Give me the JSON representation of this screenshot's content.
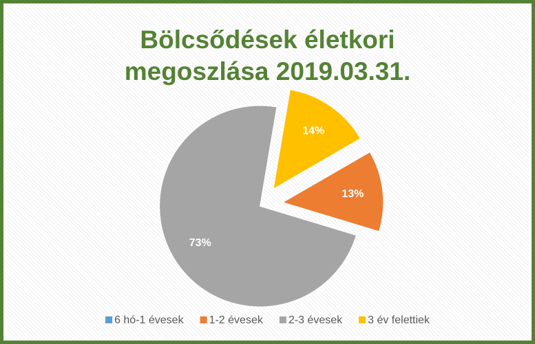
{
  "chart_data": {
    "type": "pie",
    "title": "Bölcsődések életkori megoszlása 2019.03.31.",
    "categories": [
      "6 hó-1 évesek",
      "1-2 évesek",
      "2-3 évesek",
      "3 év felettiek"
    ],
    "values": [
      0,
      13,
      73,
      14
    ],
    "value_labels": [
      "0%",
      "13%",
      "73%",
      "14%"
    ],
    "colors": [
      "#5b9bd5",
      "#ed7d31",
      "#a5a5a5",
      "#ffc000"
    ],
    "legend": "bottom"
  }
}
